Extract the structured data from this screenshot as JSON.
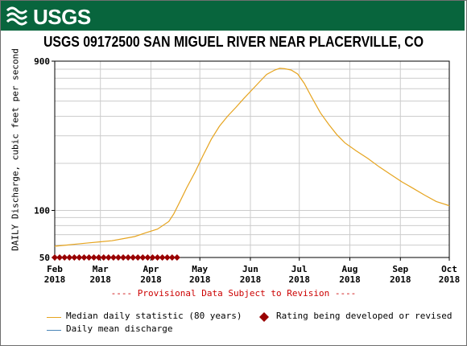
{
  "header": {
    "agency_logo_text": "USGS"
  },
  "colors": {
    "banner": "#08653d",
    "median_line": "#e6a41f",
    "daily_mean_line": "#4a86b8",
    "rating_marker": "#990000",
    "provisional_text": "#cc0000",
    "grid": "#cccccc"
  },
  "chart_data": {
    "type": "line",
    "title": "USGS 09172500 SAN MIGUEL RIVER NEAR PLACERVILLE, CO",
    "ylabel": "DAILY Discharge, cubic feet per second",
    "yscale": "log",
    "ylim": [
      50,
      900
    ],
    "yticks": [
      {
        "value": 50,
        "label": "50"
      },
      {
        "value": 100,
        "label": "100"
      },
      {
        "value": 900,
        "label": "900"
      }
    ],
    "xlim": [
      "2018-02-01",
      "2018-10-01"
    ],
    "xticks": [
      {
        "date": "2018-02-01",
        "month": "Feb",
        "year": "2018"
      },
      {
        "date": "2018-03-01",
        "month": "Mar",
        "year": "2018"
      },
      {
        "date": "2018-04-01",
        "month": "Apr",
        "year": "2018"
      },
      {
        "date": "2018-05-01",
        "month": "May",
        "year": "2018"
      },
      {
        "date": "2018-06-01",
        "month": "Jun",
        "year": "2018"
      },
      {
        "date": "2018-07-01",
        "month": "Jul",
        "year": "2018"
      },
      {
        "date": "2018-08-01",
        "month": "Aug",
        "year": "2018"
      },
      {
        "date": "2018-09-01",
        "month": "Sep",
        "year": "2018"
      },
      {
        "date": "2018-10-01",
        "month": "Oct",
        "year": "2018"
      }
    ],
    "grid": true,
    "series": [
      {
        "name": "Median daily statistic (80 years)",
        "points": [
          [
            "2018-02-01",
            59
          ],
          [
            "2018-02-08",
            60
          ],
          [
            "2018-02-15",
            61
          ],
          [
            "2018-02-22",
            62
          ],
          [
            "2018-03-01",
            63
          ],
          [
            "2018-03-08",
            64
          ],
          [
            "2018-03-15",
            66
          ],
          [
            "2018-03-22",
            68
          ],
          [
            "2018-03-29",
            72
          ],
          [
            "2018-04-05",
            76
          ],
          [
            "2018-04-12",
            85
          ],
          [
            "2018-04-15",
            95
          ],
          [
            "2018-04-19",
            115
          ],
          [
            "2018-04-23",
            140
          ],
          [
            "2018-04-28",
            175
          ],
          [
            "2018-05-03",
            225
          ],
          [
            "2018-05-08",
            285
          ],
          [
            "2018-05-13",
            345
          ],
          [
            "2018-05-18",
            400
          ],
          [
            "2018-05-23",
            455
          ],
          [
            "2018-05-28",
            520
          ],
          [
            "2018-06-02",
            590
          ],
          [
            "2018-06-07",
            670
          ],
          [
            "2018-06-11",
            740
          ],
          [
            "2018-06-16",
            790
          ],
          [
            "2018-06-19",
            810
          ],
          [
            "2018-06-22",
            805
          ],
          [
            "2018-06-26",
            790
          ],
          [
            "2018-06-30",
            745
          ],
          [
            "2018-07-04",
            650
          ],
          [
            "2018-07-09",
            520
          ],
          [
            "2018-07-14",
            420
          ],
          [
            "2018-07-19",
            355
          ],
          [
            "2018-07-24",
            305
          ],
          [
            "2018-07-29",
            270
          ],
          [
            "2018-08-05",
            240
          ],
          [
            "2018-08-12",
            215
          ],
          [
            "2018-08-19",
            190
          ],
          [
            "2018-08-26",
            170
          ],
          [
            "2018-09-02",
            152
          ],
          [
            "2018-09-09",
            138
          ],
          [
            "2018-09-16",
            125
          ],
          [
            "2018-09-23",
            114
          ],
          [
            "2018-09-30",
            108
          ],
          [
            "2018-10-01",
            107
          ]
        ]
      },
      {
        "name": "Daily mean discharge",
        "points": []
      }
    ],
    "rating_marker": {
      "name": "Rating being developed or revised",
      "dates": [
        "2018-02-01",
        "2018-02-04",
        "2018-02-07",
        "2018-02-10",
        "2018-02-13",
        "2018-02-16",
        "2018-02-19",
        "2018-02-22",
        "2018-02-25",
        "2018-02-28",
        "2018-03-03",
        "2018-03-06",
        "2018-03-09",
        "2018-03-12",
        "2018-03-15",
        "2018-03-18",
        "2018-03-21",
        "2018-03-24",
        "2018-03-27",
        "2018-03-30",
        "2018-04-02",
        "2018-04-05",
        "2018-04-08",
        "2018-04-11",
        "2018-04-14",
        "2018-04-17"
      ]
    },
    "footnote": "---- Provisional Data Subject to Revision ----"
  }
}
